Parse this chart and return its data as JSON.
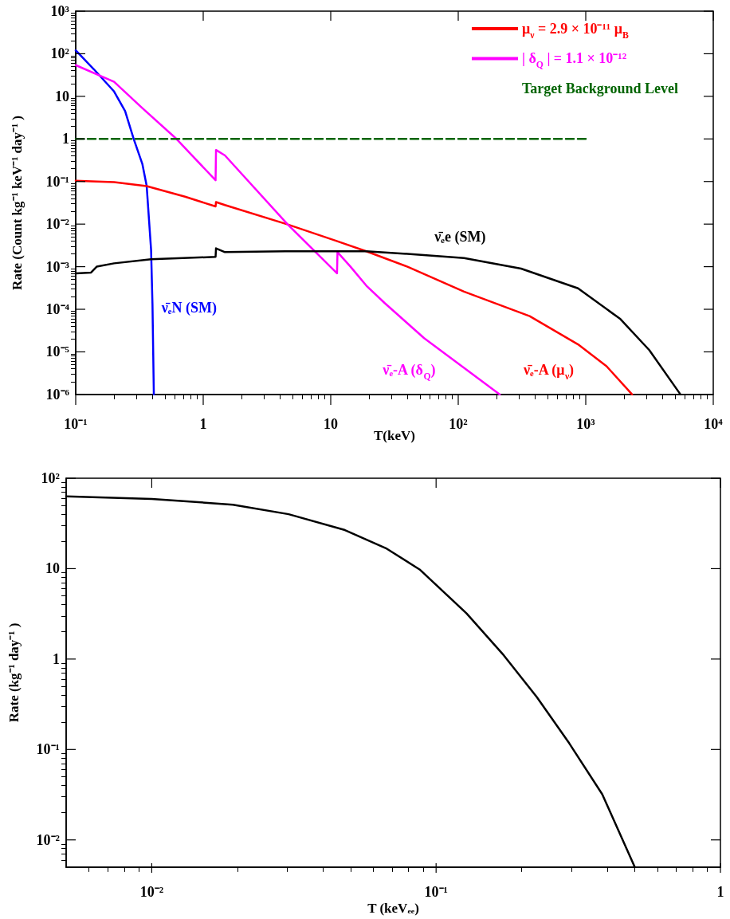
{
  "chart_data": [
    {
      "type": "line",
      "xlabel": "T(keV)",
      "ylabel": "Rate (Count kg⁻¹ keV⁻¹ day⁻¹ )",
      "log": "xy",
      "grid": false,
      "marker": "none",
      "legend": "top right",
      "xlim": [
        0.1,
        10000
      ],
      "ylim": [
        1e-06,
        1000
      ],
      "xticks": [
        {
          "value": 0.1,
          "label": "10⁻¹"
        },
        {
          "value": 1,
          "label": "1"
        },
        {
          "value": 10,
          "label": "10"
        },
        {
          "value": 100,
          "label": "10²"
        },
        {
          "value": 1000,
          "label": "10³"
        },
        {
          "value": 10000,
          "label": "10⁴"
        }
      ],
      "yticks": [
        {
          "value": 1e-06,
          "label": "10⁻⁶"
        },
        {
          "value": 1e-05,
          "label": "10⁻⁵"
        },
        {
          "value": 0.0001,
          "label": "10⁻⁴"
        },
        {
          "value": 0.001,
          "label": "10⁻³"
        },
        {
          "value": 0.01,
          "label": "10⁻²"
        },
        {
          "value": 0.1,
          "label": "10⁻¹"
        },
        {
          "value": 1,
          "label": "1"
        },
        {
          "value": 10,
          "label": "10"
        },
        {
          "value": 100,
          "label": "10²"
        },
        {
          "value": 1000,
          "label": "10³"
        }
      ],
      "series": [
        {
          "color": "#0000ff",
          "x": [
            0.1,
            0.139,
            0.2,
            0.244,
            0.285,
            0.333,
            0.36,
            0.39,
            0.4,
            0.41
          ],
          "values": [
            120,
            43,
            13,
            4.5,
            1,
            0.26,
            0.08,
            0.0025,
            0.00013,
            1e-06
          ]
        },
        {
          "name": "μ$_{ν}$ = 2.9 × 10⁻¹¹ μ$_{B}$",
          "color": "#ff0000",
          "x": [
            0.1,
            0.146,
            0.2,
            0.36,
            0.72,
            1.25,
            1.26,
            1.48,
            4.6,
            10.9,
            19,
            40,
            111,
            363,
            870,
            1456,
            2310
          ],
          "values": [
            0.104,
            0.1,
            0.097,
            0.078,
            0.044,
            0.026,
            0.033,
            0.028,
            0.0098,
            0.0041,
            0.0023,
            0.001,
            0.00026,
            6.9e-05,
            1.5e-05,
            4.6e-06,
            1e-06
          ]
        },
        {
          "name": "| δ$_{Q}$ | = 1.1 × 10⁻¹²",
          "color": "#ff00ff",
          "x": [
            0.1,
            0.2,
            0.333,
            0.617,
            1.25,
            1.26,
            1.48,
            4.6,
            11.2,
            11.3,
            14.3,
            19,
            26.5,
            54,
            212
          ],
          "values": [
            54,
            22,
            5.3,
            1,
            0.107,
            0.55,
            0.41,
            0.0098,
            0.0007,
            0.0022,
            0.001,
            0.00036,
            0.00014,
            2.1e-05,
            1e-06
          ]
        },
        {
          "color": "#000000",
          "x": [
            0.1,
            0.132,
            0.146,
            0.2,
            0.39,
            1.25,
            1.26,
            1.48,
            4.4,
            19,
            40,
            111,
            311,
            870,
            1870,
            3150,
            5530
          ],
          "values": [
            0.0007,
            0.00073,
            0.001,
            0.0012,
            0.0015,
            0.0017,
            0.0027,
            0.0022,
            0.0023,
            0.0023,
            0.002,
            0.0016,
            0.0009,
            0.00031,
            5.9e-05,
            1.1e-05,
            1e-06
          ]
        },
        {
          "name": "Target Background Level",
          "color": "#006400",
          "line_style": "dashed",
          "x": [
            0.1,
            1000
          ],
          "values": [
            1,
            1
          ]
        }
      ],
      "annotations": [
        {
          "text": "ν̄ₑN (SM)",
          "x": 0.4,
          "y": 0.00013
        },
        {
          "text": "ν̄ₑe (SM)",
          "x": 40,
          "y": 0.002
        },
        {
          "text": "ν̄ₑ-A (δ$_{Q}$)",
          "x": 54,
          "y": 2.1e-05
        },
        {
          "text": "ν̄ₑ-A (μ$_{ν}$)",
          "x": 870,
          "y": 1.5e-05
        }
      ]
    },
    {
      "type": "line",
      "xlabel": "T (keVₑₑ)",
      "ylabel": "Rate (kg⁻¹ day⁻¹ )",
      "log": "xy",
      "grid": false,
      "marker": "none",
      "xlim": [
        0.005,
        1
      ],
      "ylim": [
        0.005,
        100
      ],
      "xticks": [
        {
          "value": 0.01,
          "label": "10⁻²"
        },
        {
          "value": 0.1,
          "label": "10⁻¹"
        },
        {
          "value": 1,
          "label": "1"
        }
      ],
      "yticks": [
        {
          "value": 0.01,
          "label": "10⁻²"
        },
        {
          "value": 0.1,
          "label": "10⁻¹"
        },
        {
          "value": 1,
          "label": "1"
        },
        {
          "value": 10,
          "label": "10"
        },
        {
          "value": 100,
          "label": "10²"
        }
      ],
      "series": [
        {
          "color": "#000000",
          "x": [
            0.005,
            0.01,
            0.0193,
            0.0303,
            0.0478,
            0.0671,
            0.0875,
            0.128,
            0.173,
            0.226,
            0.294,
            0.384,
            0.5
          ],
          "values": [
            63,
            59,
            51,
            40,
            26.7,
            16.6,
            9.8,
            3.2,
            1.1,
            0.38,
            0.117,
            0.032,
            0.005
          ]
        }
      ]
    }
  ]
}
